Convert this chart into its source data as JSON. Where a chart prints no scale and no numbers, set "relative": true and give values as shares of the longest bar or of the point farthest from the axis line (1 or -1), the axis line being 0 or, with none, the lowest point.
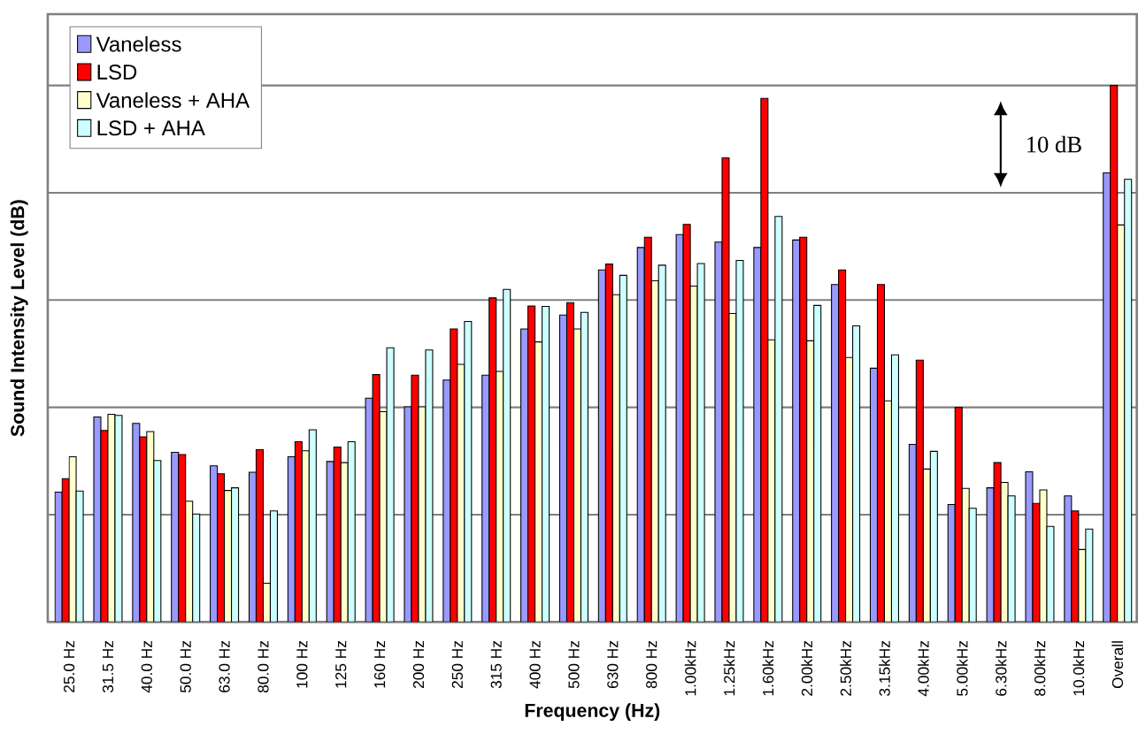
{
  "chart_data": {
    "type": "bar",
    "xlabel": "Frequency (Hz)",
    "ylabel": "Sound Intensity Level (dB)",
    "categories": [
      "25.0 Hz",
      "31.5 Hz",
      "40.0 Hz",
      "50.0 Hz",
      "63.0 Hz",
      "80.0 Hz",
      "100 Hz",
      "125 Hz",
      "160 Hz",
      "200 Hz",
      "250 Hz",
      "315 Hz",
      "400 Hz",
      "500 Hz",
      "630 Hz",
      "800 Hz",
      "1.00kHz",
      "1.25kHz",
      "1.60kHz",
      "2.00kHz",
      "2.50kHz",
      "3.15kHz",
      "4.00kHz",
      "5.00kHz",
      "6.30kHz",
      "8.00kHz",
      "10.0kHz",
      "Overall"
    ],
    "series": [
      {
        "name": "Vaneless",
        "color": "#9999ff",
        "values": [
          0.242,
          0.382,
          0.37,
          0.316,
          0.291,
          0.279,
          0.308,
          0.299,
          0.417,
          0.401,
          0.451,
          0.46,
          0.546,
          0.572,
          0.656,
          0.698,
          0.722,
          0.708,
          0.698,
          0.712,
          0.629,
          0.473,
          0.331,
          0.219,
          0.25,
          0.28,
          0.235,
          0.837
        ]
      },
      {
        "name": "LSD",
        "color": "#ff0000",
        "values": [
          0.267,
          0.357,
          0.345,
          0.312,
          0.276,
          0.321,
          0.336,
          0.326,
          0.461,
          0.46,
          0.546,
          0.604,
          0.589,
          0.595,
          0.667,
          0.717,
          0.741,
          0.865,
          0.976,
          0.717,
          0.656,
          0.629,
          0.488,
          0.4,
          0.297,
          0.221,
          0.207,
          1
        ]
      },
      {
        "name": "Vaneless + AHA",
        "color": "#ffffcc",
        "values": [
          0.308,
          0.387,
          0.355,
          0.225,
          0.245,
          0.072,
          0.319,
          0.297,
          0.392,
          0.401,
          0.48,
          0.467,
          0.522,
          0.546,
          0.61,
          0.636,
          0.626,
          0.575,
          0.526,
          0.524,
          0.493,
          0.412,
          0.285,
          0.249,
          0.26,
          0.246,
          0.135,
          0.74
        ]
      },
      {
        "name": "LSD + AHA",
        "color": "#ccffff",
        "values": [
          0.244,
          0.385,
          0.301,
          0.201,
          0.25,
          0.207,
          0.358,
          0.336,
          0.511,
          0.507,
          0.56,
          0.62,
          0.588,
          0.577,
          0.646,
          0.665,
          0.668,
          0.674,
          0.756,
          0.59,
          0.552,
          0.498,
          0.318,
          0.212,
          0.235,
          0.178,
          0.173,
          0.825
        ]
      }
    ],
    "relative": true,
    "grid": "y",
    "legend": "top left",
    "annotations": [
      "10 dB"
    ]
  }
}
